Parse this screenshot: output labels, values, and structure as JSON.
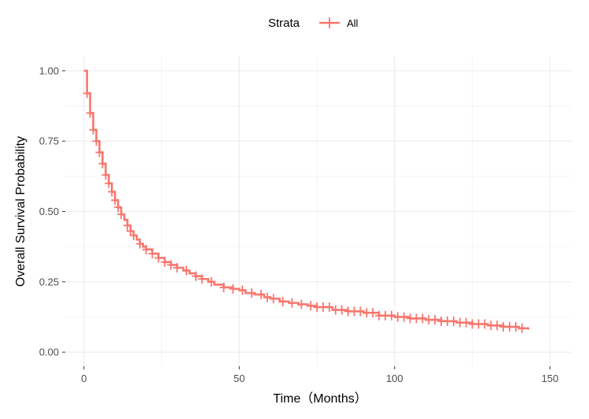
{
  "chart_data": {
    "type": "line",
    "title": "",
    "xlabel": "Time（Months）",
    "ylabel": "Overall Survival Probability",
    "xlim": [
      -6,
      157
    ],
    "ylim": [
      -0.05,
      1.05
    ],
    "x_ticks": [
      0,
      50,
      100,
      150
    ],
    "y_ticks": [
      0.0,
      0.25,
      0.5,
      0.75,
      1.0
    ],
    "x_tick_labels": [
      "0",
      "50",
      "100",
      "150"
    ],
    "y_tick_labels": [
      "0.00",
      "0.25",
      "0.50",
      "0.75",
      "1.00"
    ],
    "grid": true,
    "legend": {
      "position": "top",
      "title": "Strata",
      "entries": [
        "All"
      ]
    },
    "series": [
      {
        "name": "All",
        "color": "#f8766d",
        "step": true,
        "x": [
          0,
          1,
          2,
          3,
          4,
          5,
          6,
          7,
          8,
          9,
          10,
          11,
          12,
          13,
          14,
          15,
          16,
          17,
          18,
          19,
          20,
          22,
          24,
          26,
          28,
          30,
          32,
          34,
          36,
          38,
          40,
          42,
          45,
          48,
          50,
          52,
          55,
          58,
          60,
          63,
          66,
          69,
          72,
          75,
          80,
          85,
          90,
          95,
          100,
          105,
          110,
          115,
          120,
          125,
          130,
          135,
          140,
          143
        ],
        "y": [
          1.0,
          0.92,
          0.85,
          0.79,
          0.75,
          0.71,
          0.67,
          0.63,
          0.6,
          0.57,
          0.54,
          0.515,
          0.49,
          0.47,
          0.45,
          0.43,
          0.415,
          0.4,
          0.385,
          0.375,
          0.365,
          0.35,
          0.335,
          0.32,
          0.31,
          0.3,
          0.29,
          0.28,
          0.27,
          0.26,
          0.25,
          0.24,
          0.23,
          0.225,
          0.22,
          0.21,
          0.205,
          0.195,
          0.19,
          0.18,
          0.175,
          0.17,
          0.165,
          0.16,
          0.15,
          0.145,
          0.14,
          0.13,
          0.125,
          0.12,
          0.115,
          0.11,
          0.105,
          0.1,
          0.095,
          0.09,
          0.085,
          0.08
        ],
        "censor_x": [
          1,
          2,
          3,
          4,
          5,
          6,
          7,
          8,
          9,
          10,
          11,
          12,
          14,
          15,
          16,
          18,
          20,
          22,
          24,
          26,
          28,
          30,
          33,
          36,
          38,
          41,
          45,
          48,
          51,
          54,
          57,
          59,
          61,
          64,
          67,
          70,
          73,
          75,
          77,
          79,
          81,
          83,
          85,
          87,
          89,
          91,
          93,
          95,
          97,
          99,
          101,
          103,
          105,
          107,
          109,
          111,
          113,
          115,
          117,
          119,
          121,
          123,
          125,
          127,
          129,
          131,
          133,
          135,
          137,
          139,
          141
        ]
      }
    ]
  }
}
